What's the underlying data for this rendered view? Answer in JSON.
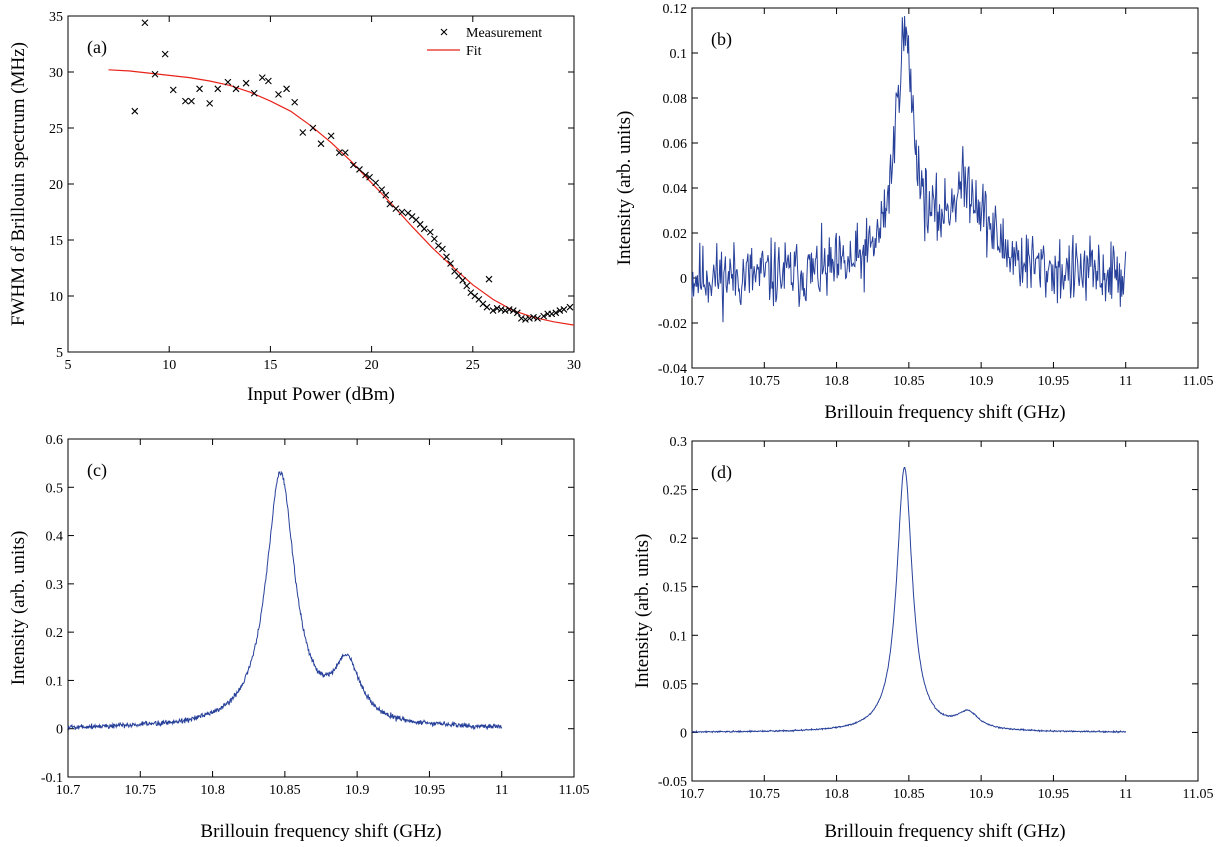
{
  "colors": {
    "measurement": "#000000",
    "fit": "#e8231a",
    "spectrum": "#27409a",
    "axes": "#000000"
  },
  "chart_data": [
    {
      "id": "a",
      "type": "scatter",
      "panel_label": "(a)",
      "xlabel": "Input Power (dBm)",
      "ylabel": "FWHM of Brillouin spectrum (MHz)",
      "xlim": [
        5,
        30
      ],
      "ylim": [
        5,
        35
      ],
      "xticks": [
        5,
        10,
        15,
        20,
        25,
        30
      ],
      "xtick_labels": [
        "5",
        "10",
        "15",
        "20",
        "25",
        "30"
      ],
      "yticks": [
        5,
        10,
        15,
        20,
        25,
        30,
        35
      ],
      "ytick_labels": [
        "5",
        "10",
        "15",
        "20",
        "25",
        "30",
        "35"
      ],
      "legend": {
        "placement": "top-right",
        "entries": [
          "Measurement",
          "Fit"
        ]
      },
      "series": [
        {
          "name": "Measurement",
          "marker": "x",
          "points": [
            [
              8.3,
              26.5
            ],
            [
              8.8,
              34.4
            ],
            [
              9.3,
              29.8
            ],
            [
              9.8,
              31.6
            ],
            [
              10.2,
              28.4
            ],
            [
              10.8,
              27.4
            ],
            [
              11.1,
              27.4
            ],
            [
              11.5,
              28.5
            ],
            [
              12.0,
              27.2
            ],
            [
              12.4,
              28.5
            ],
            [
              12.9,
              29.1
            ],
            [
              13.3,
              28.5
            ],
            [
              13.8,
              29.0
            ],
            [
              14.2,
              28.1
            ],
            [
              14.6,
              29.5
            ],
            [
              14.9,
              29.2
            ],
            [
              15.4,
              28.0
            ],
            [
              15.8,
              28.5
            ],
            [
              16.2,
              27.3
            ],
            [
              16.6,
              24.6
            ],
            [
              17.1,
              25.0
            ],
            [
              17.5,
              23.6
            ],
            [
              18.0,
              24.3
            ],
            [
              18.4,
              22.8
            ],
            [
              18.7,
              22.8
            ],
            [
              19.1,
              21.7
            ],
            [
              19.4,
              21.3
            ],
            [
              19.7,
              20.8
            ],
            [
              19.9,
              20.6
            ],
            [
              20.2,
              20.1
            ],
            [
              20.5,
              19.5
            ],
            [
              20.7,
              19.0
            ],
            [
              20.9,
              18.2
            ],
            [
              21.2,
              17.8
            ],
            [
              21.5,
              17.5
            ],
            [
              21.8,
              17.4
            ],
            [
              22.0,
              17.1
            ],
            [
              22.2,
              16.8
            ],
            [
              22.4,
              16.4
            ],
            [
              22.6,
              16.0
            ],
            [
              22.9,
              15.7
            ],
            [
              23.1,
              15.1
            ],
            [
              23.3,
              14.5
            ],
            [
              23.5,
              14.2
            ],
            [
              23.7,
              13.5
            ],
            [
              23.9,
              12.9
            ],
            [
              24.1,
              12.2
            ],
            [
              24.3,
              11.8
            ],
            [
              24.5,
              11.4
            ],
            [
              24.7,
              10.9
            ],
            [
              24.9,
              10.3
            ],
            [
              25.1,
              10.0
            ],
            [
              25.3,
              9.7
            ],
            [
              25.5,
              9.3
            ],
            [
              25.7,
              9.0
            ],
            [
              25.8,
              11.5
            ],
            [
              26.0,
              8.7
            ],
            [
              26.2,
              8.9
            ],
            [
              26.4,
              8.8
            ],
            [
              26.6,
              8.7
            ],
            [
              26.8,
              8.8
            ],
            [
              27.0,
              8.7
            ],
            [
              27.2,
              8.5
            ],
            [
              27.4,
              8.0
            ],
            [
              27.6,
              7.9
            ],
            [
              27.8,
              8.0
            ],
            [
              28.0,
              8.1
            ],
            [
              28.2,
              8.0
            ],
            [
              28.5,
              8.2
            ],
            [
              28.7,
              8.4
            ],
            [
              28.9,
              8.4
            ],
            [
              29.1,
              8.5
            ],
            [
              29.3,
              8.7
            ],
            [
              29.5,
              8.8
            ],
            [
              29.8,
              9.0
            ]
          ]
        },
        {
          "name": "Fit",
          "line": true,
          "x": [
            7,
            8,
            9,
            10,
            11,
            12,
            13,
            14,
            15,
            16,
            17,
            18,
            19,
            20,
            21,
            22,
            23,
            24,
            25,
            26,
            27,
            28,
            29,
            30
          ],
          "y": [
            30.2,
            30.1,
            29.9,
            29.7,
            29.5,
            29.2,
            28.8,
            28.2,
            27.4,
            26.5,
            25.2,
            23.7,
            22.0,
            20.1,
            18.2,
            16.2,
            14.3,
            12.6,
            11.0,
            9.7,
            8.7,
            8.1,
            7.7,
            7.4
          ]
        }
      ]
    },
    {
      "id": "b",
      "type": "line",
      "panel_label": "(b)",
      "xlabel": "Brillouin frequency shift (GHz)",
      "ylabel": "Intensity (arb. units)",
      "xlim": [
        10.7,
        11.05
      ],
      "ylim": [
        -0.04,
        0.12
      ],
      "xticks": [
        10.7,
        10.75,
        10.8,
        10.85,
        10.9,
        10.95,
        11,
        11.05
      ],
      "xtick_labels": [
        "10.7",
        "10.75",
        "10.8",
        "10.85",
        "10.9",
        "10.95",
        "11",
        "11.05"
      ],
      "yticks": [
        -0.04,
        -0.02,
        0,
        0.02,
        0.04,
        0.06,
        0.08,
        0.1,
        0.12
      ],
      "ytick_labels": [
        "-0.04",
        "-0.02",
        "0",
        "0.02",
        "0.04",
        "0.06",
        "0.08",
        "0.1",
        "0.12"
      ],
      "series": [
        {
          "peak1": [
            10.847,
            0.102,
            0.008
          ],
          "peak2": [
            10.89,
            0.038,
            0.018
          ],
          "offset": 0.0,
          "noise": 0.013,
          "seed": 11,
          "x_range": [
            10.7,
            11.0
          ],
          "points": 560
        }
      ]
    },
    {
      "id": "c",
      "type": "line",
      "panel_label": "(c)",
      "xlabel": "Brillouin frequency shift (GHz)",
      "ylabel": "Intensity (arb. units)",
      "xlim": [
        10.7,
        11.05
      ],
      "ylim": [
        -0.1,
        0.6
      ],
      "xticks": [
        10.7,
        10.75,
        10.8,
        10.85,
        10.9,
        10.95,
        11,
        11.05
      ],
      "xtick_labels": [
        "10.7",
        "10.75",
        "10.8",
        "10.85",
        "10.9",
        "10.95",
        "11",
        "11.05"
      ],
      "yticks": [
        -0.1,
        0,
        0.1,
        0.2,
        0.3,
        0.4,
        0.5,
        0.6
      ],
      "ytick_labels": [
        "-0.1",
        "0",
        "0.1",
        "0.2",
        "0.3",
        "0.4",
        "0.5",
        "0.6"
      ],
      "series": [
        {
          "peak1": [
            10.847,
            0.525,
            0.012
          ],
          "peak2": [
            10.893,
            0.12,
            0.011
          ],
          "offset": 0.0,
          "noise": 0.005,
          "seed": 5,
          "x_range": [
            10.7,
            11.0
          ],
          "points": 900
        }
      ]
    },
    {
      "id": "d",
      "type": "line",
      "panel_label": "(d)",
      "xlabel": "Brillouin frequency shift (GHz)",
      "ylabel": "Intensity (arb. units)",
      "xlim": [
        10.7,
        11.05
      ],
      "ylim": [
        -0.05,
        0.3
      ],
      "xticks": [
        10.7,
        10.75,
        10.8,
        10.85,
        10.9,
        10.95,
        11,
        11.05
      ],
      "xtick_labels": [
        "10.7",
        "10.75",
        "10.8",
        "10.85",
        "10.9",
        "10.95",
        "11",
        "11.05"
      ],
      "yticks": [
        -0.05,
        0,
        0.05,
        0.1,
        0.15,
        0.2,
        0.25,
        0.3
      ],
      "ytick_labels": [
        "-0.05",
        "0",
        "0.05",
        "0.1",
        "0.15",
        "0.2",
        "0.25",
        "0.3"
      ],
      "series": [
        {
          "peak1": [
            10.847,
            0.272,
            0.0065
          ],
          "peak2": [
            10.891,
            0.017,
            0.009
          ],
          "offset": 0.0,
          "noise": 0.0006,
          "seed": 3,
          "x_range": [
            10.7,
            11.0
          ],
          "points": 900
        }
      ]
    }
  ]
}
